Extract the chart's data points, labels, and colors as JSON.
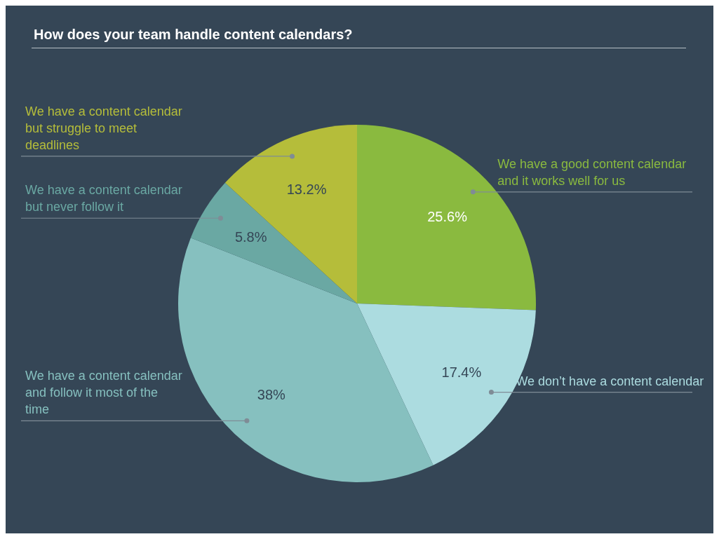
{
  "chart_data": {
    "type": "pie",
    "title": "How does your team handle content calendars?",
    "categories": [
      "We have a good content calendar and it works well for us",
      "We don’t have a content calendar",
      "We have a content calendar and follow it most of the time",
      "We have a content calendar but never follow it",
      "We have a content calendar but struggle to meet deadlines"
    ],
    "values": [
      25.6,
      17.4,
      38,
      5.8,
      13.2
    ],
    "colors": [
      "#8aba3f",
      "#acdce0",
      "#86c0bf",
      "#6aa8a3",
      "#b5bd3a"
    ],
    "value_labels": [
      "25.6%",
      "17.4%",
      "38%",
      "5.8%",
      "13.2%"
    ]
  }
}
